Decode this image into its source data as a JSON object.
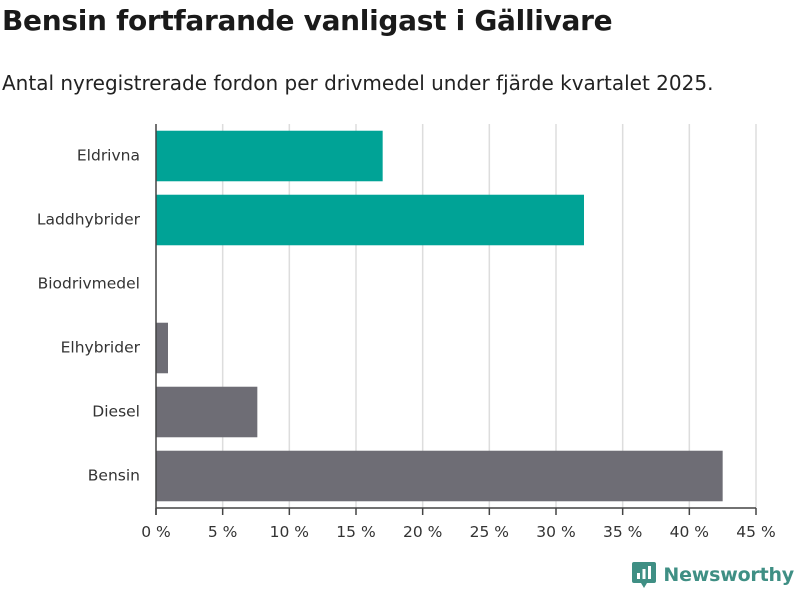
{
  "header": {
    "title": "Bensin fortfarande vanligast i Gällivare",
    "subtitle": "Antal nyregistrerade fordon per drivmedel under fjärde kvartalet 2025."
  },
  "brand": {
    "name": "Newsworthy",
    "color": "#3f8f84"
  },
  "colors": {
    "electric": "#00a396",
    "other": "#6e6d75",
    "grid": "#dddddd",
    "axis": "#444444"
  },
  "chart_data": {
    "type": "bar",
    "orientation": "horizontal",
    "title": "Bensin fortfarande vanligast i Gällivare",
    "subtitle": "Antal nyregistrerade fordon per drivmedel under fjärde kvartalet 2025.",
    "xlabel": "",
    "ylabel": "",
    "unit": "%",
    "xlim": [
      0,
      45
    ],
    "categories": [
      "Eldrivna",
      "Laddhybrider",
      "Biodrivmedel",
      "Elhybrider",
      "Diesel",
      "Bensin"
    ],
    "values": [
      17.0,
      32.1,
      0,
      0.9,
      7.6,
      42.5
    ],
    "bar_colors": [
      "#00a396",
      "#00a396",
      "#6e6d75",
      "#6e6d75",
      "#6e6d75",
      "#6e6d75"
    ],
    "ticks": [
      0,
      5,
      10,
      15,
      20,
      25,
      30,
      35,
      40,
      45
    ],
    "tick_labels": [
      "0 %",
      "5 %",
      "10 %",
      "15 %",
      "20 %",
      "25 %",
      "30 %",
      "35 %",
      "40 %",
      "45 %"
    ],
    "grid": true
  }
}
